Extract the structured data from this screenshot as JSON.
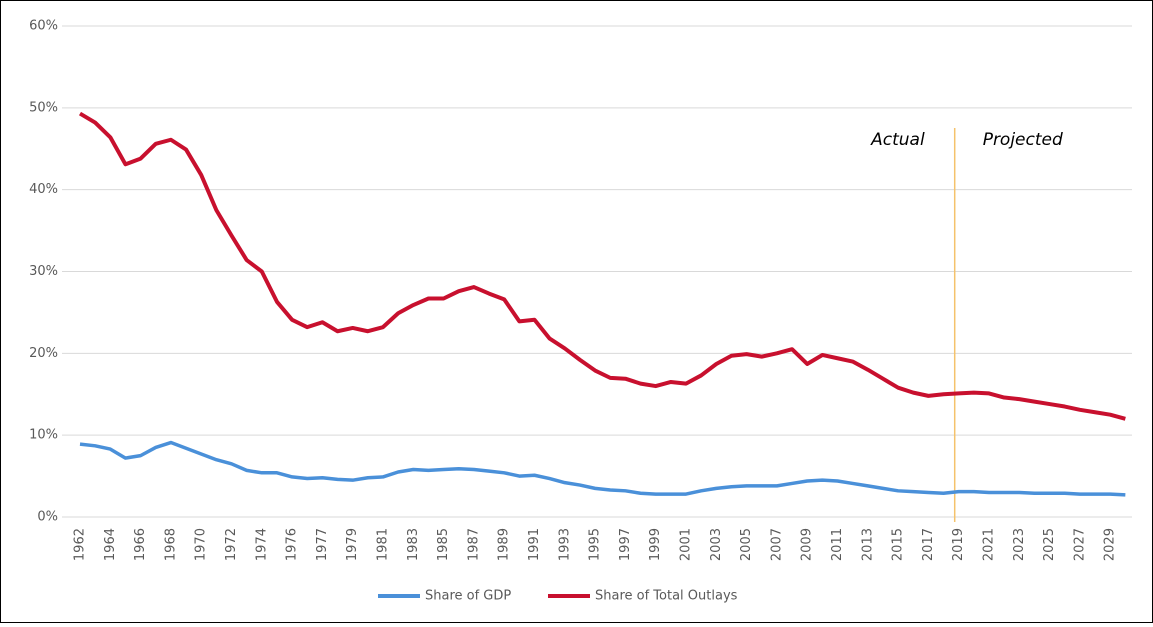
{
  "chart_data": {
    "type": "line",
    "categories": [
      "1962",
      null,
      "1964",
      null,
      "1966",
      null,
      "1968",
      null,
      "1970",
      null,
      "1972",
      null,
      "1974",
      null,
      "1976",
      null,
      "1977",
      null,
      "1979",
      null,
      "1981",
      null,
      "1983",
      null,
      "1985",
      null,
      "1987",
      null,
      "1989",
      null,
      "1991",
      null,
      "1993",
      null,
      "1995",
      null,
      "1997",
      null,
      "1999",
      null,
      "2001",
      null,
      "2003",
      null,
      "2005",
      null,
      "2007",
      null,
      "2009",
      null,
      "2011",
      null,
      "2013",
      null,
      "2015",
      null,
      "2017",
      null,
      "2019",
      null,
      "2021",
      null,
      "2023",
      null,
      "2025",
      null,
      "2027",
      null,
      "2029",
      null
    ],
    "series": [
      {
        "name": "Share of GDP",
        "color": "#4a90d9",
        "values": [
          8.9,
          8.7,
          8.3,
          7.2,
          7.5,
          8.5,
          9.1,
          8.4,
          7.7,
          7.0,
          6.5,
          5.7,
          5.4,
          5.4,
          4.9,
          4.7,
          4.8,
          4.6,
          4.5,
          4.8,
          4.9,
          5.5,
          5.8,
          5.7,
          5.8,
          5.9,
          5.8,
          5.6,
          5.4,
          5.0,
          5.1,
          4.7,
          4.2,
          3.9,
          3.5,
          3.3,
          3.2,
          2.9,
          2.8,
          2.8,
          2.8,
          3.2,
          3.5,
          3.7,
          3.8,
          3.8,
          3.8,
          4.1,
          4.4,
          4.5,
          4.4,
          4.1,
          3.8,
          3.5,
          3.2,
          3.1,
          3.0,
          2.9,
          3.1,
          3.1,
          3.0,
          3.0,
          3.0,
          2.9,
          2.9,
          2.9,
          2.8,
          2.8,
          2.8,
          2.7
        ]
      },
      {
        "name": "Share of Total Outlays",
        "color": "#c8102e",
        "values": [
          49.3,
          48.2,
          46.4,
          43.1,
          43.8,
          45.6,
          46.1,
          44.9,
          41.8,
          37.5,
          34.4,
          31.4,
          30.0,
          26.3,
          24.1,
          23.2,
          23.8,
          22.7,
          23.1,
          22.7,
          23.2,
          24.9,
          25.9,
          26.7,
          26.7,
          27.6,
          28.1,
          27.3,
          26.6,
          23.9,
          24.1,
          21.8,
          20.6,
          19.2,
          17.9,
          17.0,
          16.9,
          16.3,
          16.0,
          16.5,
          16.3,
          17.3,
          18.7,
          19.7,
          19.9,
          19.6,
          20.0,
          20.5,
          18.7,
          19.8,
          19.4,
          19.0,
          18.0,
          16.9,
          15.8,
          15.2,
          14.8,
          15.0,
          15.1,
          15.2,
          15.1,
          14.6,
          14.4,
          14.1,
          13.8,
          13.5,
          13.1,
          12.8,
          12.5,
          12.0
        ]
      }
    ],
    "annotations": [
      {
        "text": "Actual"
      },
      {
        "text": "Projected"
      }
    ],
    "divider": {
      "category": "2019",
      "color": "#f5c26b"
    },
    "ylim": [
      0,
      60
    ],
    "yticks": [
      {
        "value": 0,
        "label": "0%"
      },
      {
        "value": 10,
        "label": "10%"
      },
      {
        "value": 20,
        "label": "20%"
      },
      {
        "value": 30,
        "label": "30%"
      },
      {
        "value": 40,
        "label": "40%"
      },
      {
        "value": 50,
        "label": "50%"
      },
      {
        "value": 60,
        "label": "60%"
      }
    ],
    "grid": true,
    "legend": "bottom"
  }
}
